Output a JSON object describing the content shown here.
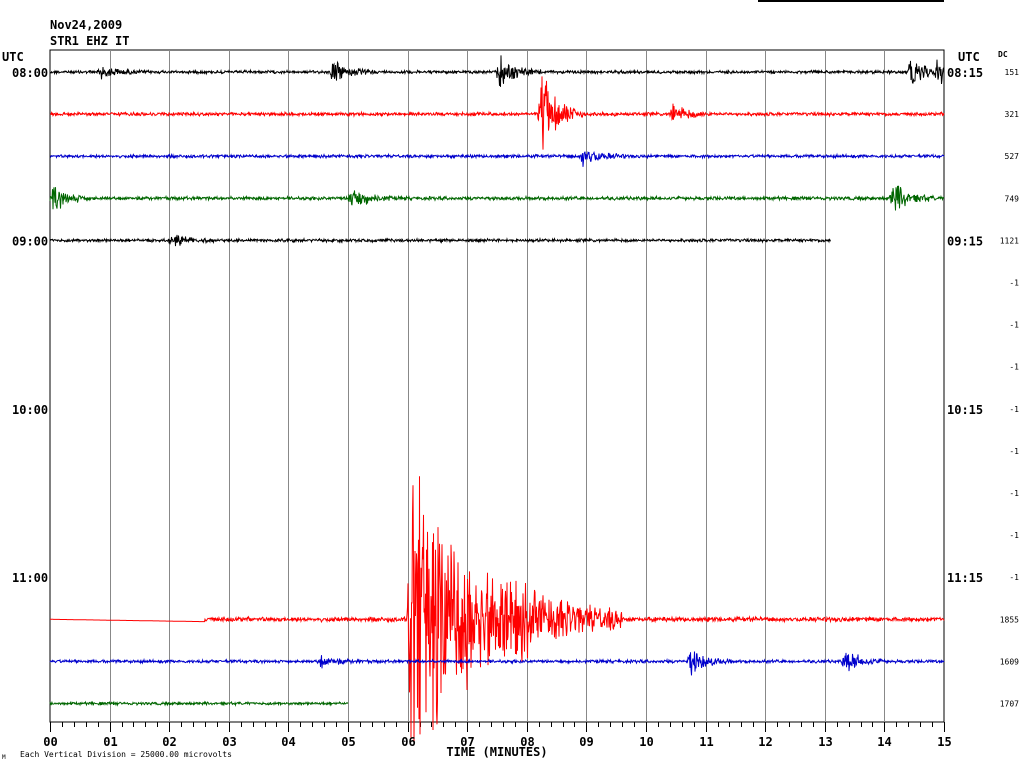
{
  "header": {
    "date": "Nov24,2009",
    "station": "STR1 EHZ IT",
    "utc_left": "UTC",
    "utc_right": "UTC",
    "dc_label": "DC"
  },
  "footer": {
    "scale_note": "Each Vertical Division = 25000.00 microvolts",
    "corner_mark": "M"
  },
  "chart_data": {
    "type": "line",
    "title": "",
    "xlabel": "TIME (MINUTES)",
    "ylabel": "",
    "xlim": [
      0,
      15
    ],
    "x_ticks": [
      "00",
      "01",
      "02",
      "03",
      "04",
      "05",
      "06",
      "07",
      "08",
      "09",
      "10",
      "11",
      "12",
      "13",
      "14",
      "15"
    ],
    "hour_labels_left": [
      "08:00",
      "09:00",
      "10:00",
      "11:00"
    ],
    "hour_labels_right": [
      "08:15",
      "09:15",
      "10:15",
      "11:15"
    ],
    "grid": true,
    "rows": [
      {
        "index": 0,
        "color": "#000000",
        "dc": "151",
        "start": 0,
        "end": 15,
        "noise": 2.0,
        "events": [
          {
            "t": 0.8,
            "amp": 8
          },
          {
            "t": 4.7,
            "amp": 14
          },
          {
            "t": 7.5,
            "amp": 20
          },
          {
            "t": 14.4,
            "amp": 18
          },
          {
            "t": 14.85,
            "amp": 14
          }
        ]
      },
      {
        "index": 1,
        "color": "#ff0000",
        "dc": "321",
        "start": 0,
        "end": 15,
        "noise": 2.2,
        "events": [
          {
            "t": 8.2,
            "amp": 55
          },
          {
            "t": 10.4,
            "amp": 12
          }
        ]
      },
      {
        "index": 2,
        "color": "#0000cc",
        "dc": "527",
        "start": 0,
        "end": 15,
        "noise": 2.0,
        "events": [
          {
            "t": 8.9,
            "amp": 14
          }
        ]
      },
      {
        "index": 3,
        "color": "#006600",
        "dc": "749",
        "start": 0,
        "end": 15,
        "noise": 2.2,
        "events": [
          {
            "t": 0.0,
            "amp": 16
          },
          {
            "t": 5.0,
            "amp": 16
          },
          {
            "t": 14.1,
            "amp": 20
          }
        ]
      },
      {
        "index": 4,
        "color": "#000000",
        "dc": "1121",
        "start": 0,
        "end": 13.1,
        "noise": 2.0,
        "events": [
          {
            "t": 2.0,
            "amp": 8
          }
        ]
      },
      {
        "index": 5,
        "color": "#ff0000",
        "dc": "-1",
        "start": 0,
        "end": 0,
        "noise": 0,
        "events": []
      },
      {
        "index": 6,
        "color": "#0000cc",
        "dc": "-1",
        "start": 0,
        "end": 0,
        "noise": 0,
        "events": []
      },
      {
        "index": 7,
        "color": "#006600",
        "dc": "-1",
        "start": 0,
        "end": 0,
        "noise": 0,
        "events": []
      },
      {
        "index": 8,
        "color": "#000000",
        "dc": "-1",
        "start": 0,
        "end": 0,
        "noise": 0,
        "events": []
      },
      {
        "index": 9,
        "color": "#ff0000",
        "dc": "-1",
        "start": 0,
        "end": 0,
        "noise": 0,
        "events": []
      },
      {
        "index": 10,
        "color": "#0000cc",
        "dc": "-1",
        "start": 0,
        "end": 0,
        "noise": 0,
        "events": []
      },
      {
        "index": 11,
        "color": "#006600",
        "dc": "-1",
        "start": 0,
        "end": 0,
        "noise": 0,
        "events": []
      },
      {
        "index": 12,
        "color": "#000000",
        "dc": "-1",
        "start": 0,
        "end": 0,
        "noise": 0,
        "events": []
      },
      {
        "index": 13,
        "color": "#ff0000",
        "dc": "1855",
        "start": 0,
        "end": 15,
        "noise": 3.0,
        "flat_until": 2.6,
        "events": [
          {
            "t": 6.0,
            "amp": 190,
            "dur": 1.2
          },
          {
            "t": 7.8,
            "amp": 10
          }
        ]
      },
      {
        "index": 14,
        "color": "#0000cc",
        "dc": "1609",
        "start": 0,
        "end": 15,
        "noise": 2.0,
        "events": [
          {
            "t": 4.5,
            "amp": 7
          },
          {
            "t": 10.7,
            "amp": 16
          },
          {
            "t": 13.3,
            "amp": 14
          }
        ]
      },
      {
        "index": 15,
        "color": "#006600",
        "dc": "1707",
        "start": 0,
        "end": 5.0,
        "noise": 1.8,
        "events": []
      }
    ]
  }
}
